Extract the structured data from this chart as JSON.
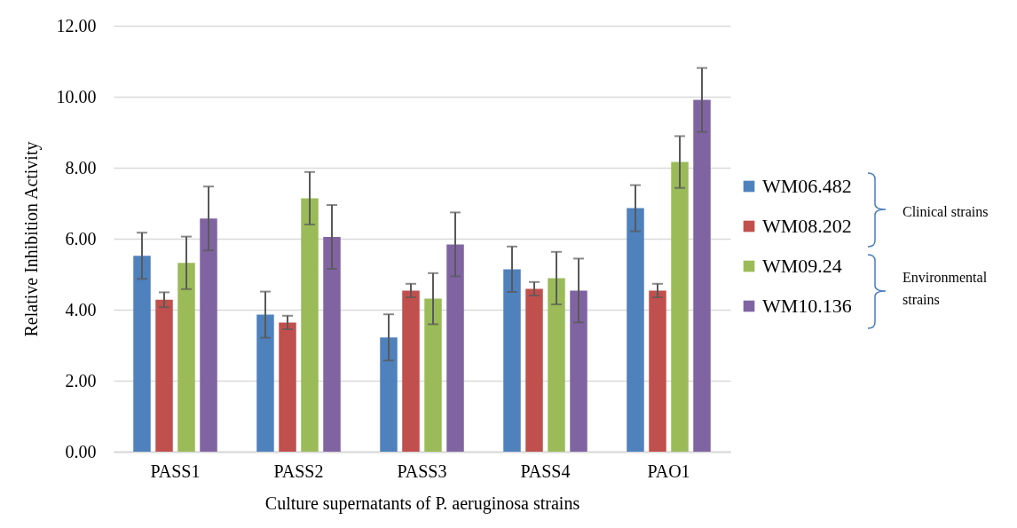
{
  "chart_data": {
    "type": "bar",
    "xlabel": "Culture supernatants of P. aeruginosa strains",
    "ylabel": "Relative Inhibition Activity",
    "categories": [
      "PASS1",
      "PASS2",
      "PASS3",
      "PASS4",
      "PAO1"
    ],
    "series": [
      {
        "name": "WM06.482",
        "color": "#4f81bd",
        "values": [
          5.52,
          3.86,
          3.22,
          5.14,
          6.86
        ],
        "errors": [
          0.65,
          0.65,
          0.65,
          0.64,
          0.65
        ]
      },
      {
        "name": "WM08.202",
        "color": "#c0504d",
        "values": [
          4.28,
          3.64,
          4.54,
          4.59,
          4.54
        ],
        "errors": [
          0.21,
          0.19,
          0.19,
          0.19,
          0.19
        ]
      },
      {
        "name": "WM09.24",
        "color": "#9bbb59",
        "values": [
          5.32,
          7.14,
          4.31,
          4.89,
          8.16
        ],
        "errors": [
          0.74,
          0.74,
          0.72,
          0.74,
          0.73
        ]
      },
      {
        "name": "WM10.136",
        "color": "#8064a2",
        "values": [
          6.57,
          6.05,
          5.84,
          4.54,
          9.91
        ],
        "errors": [
          0.9,
          0.9,
          0.9,
          0.9,
          0.9
        ]
      }
    ],
    "ylim": [
      0,
      12
    ],
    "yticks": [
      {
        "value": 0,
        "label": "0.00"
      },
      {
        "value": 2,
        "label": "2.00"
      },
      {
        "value": 4,
        "label": "4.00"
      },
      {
        "value": 6,
        "label": "6.00"
      },
      {
        "value": 8,
        "label": "8.00"
      },
      {
        "value": 10,
        "label": "10.00"
      },
      {
        "value": 12,
        "label": "12.00"
      }
    ],
    "grid": "y",
    "legend": "right",
    "annotations": [
      "Clinical strains",
      "Environmental strains"
    ]
  }
}
